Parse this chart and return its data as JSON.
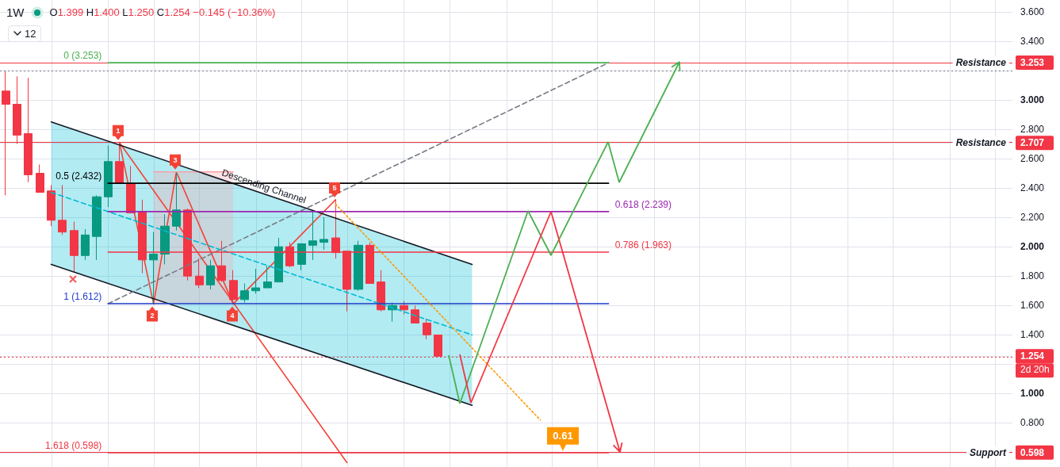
{
  "chart_data": {
    "type": "candlestick",
    "title": "1W",
    "subtitle": "O1.399 H1.400 L1.250 C1.254 −0.145 (−10.36%)",
    "categories": [
      null,
      null,
      null,
      null,
      null,
      null,
      null,
      null,
      null,
      null,
      null,
      null,
      null,
      null,
      null,
      null,
      null,
      null,
      null,
      null,
      null,
      null,
      null,
      null,
      null,
      null,
      null,
      null,
      null,
      null,
      null,
      null,
      null,
      null,
      null,
      null,
      null,
      null,
      null,
      null,
      null,
      null,
      null,
      null,
      null,
      null,
      null,
      null,
      null,
      null,
      null,
      null,
      null,
      null,
      null,
      null,
      null,
      null,
      null,
      null,
      null,
      null,
      null,
      null,
      null,
      null,
      null,
      null,
      null,
      null,
      null,
      null,
      null,
      null,
      null,
      null,
      null,
      null,
      null,
      null,
      null,
      null,
      null,
      null,
      null,
      null,
      null,
      null,
      null
    ],
    "ohlc": [
      [
        3.06,
        3.2,
        2.35,
        2.97
      ],
      [
        2.97,
        3.16,
        2.7,
        2.76
      ],
      [
        2.77,
        3.15,
        2.44,
        2.49
      ],
      [
        2.5,
        2.56,
        2.37,
        2.37
      ],
      [
        2.38,
        2.42,
        2.14,
        2.18
      ],
      [
        2.18,
        2.42,
        2.08,
        2.1
      ],
      [
        2.11,
        2.17,
        1.83,
        1.94
      ],
      [
        1.94,
        2.12,
        1.91,
        2.08
      ],
      [
        2.07,
        2.35,
        1.91,
        2.34
      ],
      [
        2.34,
        2.69,
        2.27,
        2.58
      ],
      [
        2.58,
        2.71,
        2.43,
        2.43
      ],
      [
        2.43,
        2.55,
        2.23,
        2.23
      ],
      [
        2.24,
        2.32,
        1.82,
        1.91
      ],
      [
        1.91,
        2.1,
        1.61,
        1.95
      ],
      [
        1.95,
        2.22,
        1.88,
        2.14
      ],
      [
        2.14,
        2.51,
        2.11,
        2.25
      ],
      [
        2.25,
        2.26,
        1.77,
        1.8
      ],
      [
        1.8,
        1.92,
        1.72,
        1.74
      ],
      [
        1.74,
        1.91,
        1.71,
        1.87
      ],
      [
        1.87,
        2.04,
        1.76,
        1.77
      ],
      [
        1.77,
        1.84,
        1.61,
        1.64
      ],
      [
        1.64,
        1.75,
        1.62,
        1.7
      ],
      [
        1.7,
        1.85,
        1.68,
        1.72
      ],
      [
        1.72,
        1.87,
        1.72,
        1.76
      ],
      [
        1.76,
        2.06,
        1.76,
        2.0
      ],
      [
        2.0,
        2.03,
        1.86,
        1.87
      ],
      [
        1.88,
        2.02,
        1.84,
        2.02
      ],
      [
        2.01,
        2.24,
        1.91,
        2.04
      ],
      [
        2.03,
        2.2,
        1.98,
        2.05
      ],
      [
        2.06,
        2.32,
        1.92,
        1.96
      ],
      [
        1.97,
        1.97,
        1.56,
        1.71
      ],
      [
        1.71,
        2.04,
        1.7,
        2.01
      ],
      [
        2.01,
        2.03,
        1.75,
        1.75
      ],
      [
        1.76,
        1.84,
        1.56,
        1.57
      ],
      [
        1.57,
        1.62,
        1.49,
        1.6
      ],
      [
        1.6,
        1.63,
        1.54,
        1.57
      ],
      [
        1.57,
        1.6,
        1.48,
        1.48
      ],
      [
        1.48,
        1.51,
        1.37,
        1.4
      ],
      [
        1.399,
        1.4,
        1.25,
        1.254
      ],
      null,
      null,
      null,
      null,
      null,
      null,
      null,
      null,
      null,
      null,
      null,
      null,
      null,
      null,
      null,
      null,
      null,
      null,
      null,
      null,
      null,
      null,
      null,
      null,
      null,
      null,
      null,
      null,
      null,
      null,
      null,
      null,
      null,
      null,
      null,
      null,
      null,
      null,
      null,
      null,
      null,
      null,
      null,
      null,
      null,
      null,
      null,
      null,
      null,
      null
    ],
    "colors": [
      "#f23645",
      "#f23645",
      "#f23645",
      "#f23645",
      "#f23645",
      "#f23645",
      "#f23645",
      "#089981",
      "#089981",
      "#089981",
      "#f23645",
      "#f23645",
      "#f23645",
      "#089981",
      "#089981",
      "#089981",
      "#f23645",
      "#f23645",
      "#089981",
      "#f23645",
      "#f23645",
      "#089981",
      "#089981",
      "#089981",
      "#089981",
      "#f23645",
      "#089981",
      "#089981",
      "#089981",
      "#f23645",
      "#f23645",
      "#089981",
      "#f23645",
      "#f23645",
      "#089981",
      "#f23645",
      "#f23645",
      "#f23645",
      "#f23645",
      null,
      null,
      null,
      null,
      null,
      null,
      null,
      null,
      null,
      null,
      null,
      null,
      null,
      null,
      null,
      null,
      null,
      null,
      null,
      null,
      null,
      null,
      null,
      null,
      null,
      null,
      null,
      null,
      null,
      null,
      null,
      null,
      null,
      null,
      null,
      null,
      null,
      null,
      null,
      null,
      null,
      null,
      null,
      null,
      null,
      null,
      null,
      null,
      null,
      null
    ],
    "series": [
      {
        "type": "line",
        "color": "#00bcd4",
        "line_style": "dashed",
        "values": [
          null,
          null,
          null,
          null,
          2.37,
          null,
          null,
          null,
          null,
          null,
          null,
          null,
          null,
          null,
          null,
          null,
          null,
          null,
          null,
          null,
          null,
          null,
          null,
          null,
          null,
          null,
          null,
          null,
          null,
          null,
          null,
          null,
          null,
          null,
          null,
          null,
          null,
          null,
          null,
          null,
          null,
          1.4,
          null,
          null,
          null,
          null,
          null,
          null,
          null,
          null,
          null,
          null,
          null,
          null,
          null,
          null,
          null,
          null,
          null,
          null,
          null,
          null,
          null,
          null,
          null,
          null,
          null,
          null,
          null,
          null,
          null,
          null,
          null,
          null,
          null,
          null,
          null,
          null,
          null,
          null,
          null,
          null,
          null,
          null,
          null,
          null,
          null,
          null,
          null
        ],
        "lower": [
          null,
          null,
          null,
          null,
          1.88,
          null,
          null,
          null,
          null,
          null,
          null,
          null,
          null,
          null,
          null,
          null,
          null,
          null,
          null,
          null,
          null,
          null,
          null,
          null,
          null,
          null,
          null,
          null,
          null,
          null,
          null,
          null,
          null,
          null,
          null,
          null,
          null,
          null,
          null,
          null,
          null,
          0.92,
          null,
          null,
          null,
          null,
          null,
          null,
          null,
          null,
          null,
          null,
          null,
          null,
          null,
          null,
          null,
          null,
          null,
          null,
          null,
          null,
          null,
          null,
          null,
          null,
          null,
          null,
          null,
          null,
          null,
          null,
          null,
          null,
          null,
          null,
          null,
          null,
          null,
          null,
          null,
          null,
          null,
          null,
          null,
          null,
          null,
          null,
          null
        ],
        "upper": [
          null,
          null,
          null,
          null,
          2.85,
          null,
          null,
          null,
          null,
          null,
          null,
          null,
          null,
          null,
          null,
          null,
          null,
          null,
          null,
          null,
          null,
          null,
          null,
          null,
          null,
          null,
          null,
          null,
          null,
          null,
          null,
          null,
          null,
          null,
          null,
          null,
          null,
          null,
          null,
          null,
          null,
          1.88,
          null,
          null,
          null,
          null,
          null,
          null,
          null,
          null,
          null,
          null,
          null,
          null,
          null,
          null,
          null,
          null,
          null,
          null,
          null,
          null,
          null,
          null,
          null,
          null,
          null,
          null,
          null,
          null,
          null,
          null,
          null,
          null,
          null,
          null,
          null,
          null,
          null,
          null,
          null,
          null,
          null,
          null,
          null,
          null,
          null,
          null,
          null
        ]
      },
      {
        "type": "line",
        "color": "#f7a1a8",
        "values": [
          null,
          null,
          null,
          null,
          null,
          null,
          null,
          null,
          null,
          null,
          null,
          null,
          null,
          2.51,
          null,
          null,
          null,
          null,
          null,
          null,
          2.51,
          null,
          null,
          null,
          null,
          null,
          null,
          null,
          null,
          null,
          null,
          null,
          null,
          null,
          null,
          null,
          null,
          null,
          null,
          null,
          null,
          null,
          null,
          null,
          null,
          null,
          null,
          null,
          null,
          null,
          null,
          null,
          null,
          null,
          null,
          null,
          null,
          null,
          null,
          null,
          null,
          null,
          null,
          null,
          null,
          null,
          null,
          null,
          null,
          null,
          null,
          null,
          null,
          null,
          null,
          null,
          null,
          null,
          null,
          null,
          null,
          null,
          null,
          null,
          null,
          null,
          null,
          null,
          null
        ],
        "lower": [
          null,
          null,
          null,
          null,
          null,
          null,
          null,
          null,
          null,
          null,
          null,
          null,
          null,
          1.61,
          null,
          null,
          null,
          null,
          null,
          null,
          1.61,
          null,
          null,
          null,
          null,
          null,
          null,
          null,
          null,
          null,
          null,
          null,
          null,
          null,
          null,
          null,
          null,
          null,
          null,
          null,
          null,
          null,
          null,
          null,
          null,
          null,
          null,
          null,
          null,
          null,
          null,
          null,
          null,
          null,
          null,
          null,
          null,
          null,
          null,
          null,
          null,
          null,
          null,
          null,
          null,
          null,
          null,
          null,
          null,
          null,
          null,
          null,
          null,
          null,
          null,
          null,
          null,
          null,
          null,
          null,
          null,
          null,
          null,
          null,
          null,
          null,
          null,
          null,
          null
        ],
        "upper": [
          null,
          null,
          null,
          null,
          null,
          null,
          null,
          null,
          null,
          null,
          null,
          null,
          null,
          2.51,
          null,
          null,
          null,
          null,
          null,
          null,
          2.51,
          null,
          null,
          null,
          null,
          null,
          null,
          null,
          null,
          null,
          null,
          null,
          null,
          null,
          null,
          null,
          null,
          null,
          null,
          null,
          null,
          null,
          null,
          null,
          null,
          null,
          null,
          null,
          null,
          null,
          null,
          null,
          null,
          null,
          null,
          null,
          null,
          null,
          null,
          null,
          null,
          null,
          null,
          null,
          null,
          null,
          null,
          null,
          null,
          null,
          null,
          null,
          null,
          null,
          null,
          null,
          null,
          null,
          null,
          null,
          null,
          null,
          null,
          null,
          null,
          null,
          null,
          null,
          null
        ]
      },
      {
        "type": "line",
        "color": "#131722",
        "values": [
          null,
          null,
          null,
          null,
          2.85,
          null,
          null,
          null,
          null,
          null,
          null,
          null,
          null,
          null,
          null,
          null,
          null,
          null,
          null,
          null,
          null,
          null,
          null,
          null,
          null,
          null,
          null,
          null,
          null,
          null,
          null,
          null,
          null,
          null,
          null,
          null,
          null,
          null,
          null,
          null,
          null,
          1.88,
          null,
          null,
          null,
          null,
          null,
          null,
          null,
          null,
          null,
          null,
          null,
          null,
          null,
          null,
          null,
          null,
          null,
          null,
          null,
          null,
          null,
          null,
          null,
          null,
          null,
          null,
          null,
          null,
          null,
          null,
          null,
          null,
          null,
          null,
          null,
          null,
          null,
          null,
          null,
          null,
          null,
          null,
          null,
          null,
          null,
          null,
          null
        ]
      },
      {
        "type": "line",
        "color": "#131722",
        "values": [
          null,
          null,
          null,
          null,
          1.88,
          null,
          null,
          null,
          null,
          null,
          null,
          null,
          null,
          null,
          null,
          null,
          null,
          null,
          null,
          null,
          null,
          null,
          null,
          null,
          null,
          null,
          null,
          null,
          null,
          null,
          null,
          null,
          null,
          null,
          null,
          null,
          null,
          null,
          null,
          null,
          null,
          0.92,
          null,
          null,
          null,
          null,
          null,
          null,
          null,
          null,
          null,
          null,
          null,
          null,
          null,
          null,
          null,
          null,
          null,
          null,
          null,
          null,
          null,
          null,
          null,
          null,
          null,
          null,
          null,
          null,
          null,
          null,
          null,
          null,
          null,
          null,
          null,
          null,
          null,
          null,
          null,
          null,
          null,
          null,
          null,
          null,
          null,
          null,
          null
        ]
      },
      {
        "type": "line",
        "color": "#787b86",
        "line_style": "dashed",
        "values": [
          null,
          null,
          null,
          null,
          null,
          null,
          null,
          null,
          null,
          1.612,
          null,
          null,
          null,
          null,
          null,
          null,
          null,
          null,
          null,
          null,
          null,
          null,
          null,
          null,
          null,
          null,
          null,
          null,
          null,
          null,
          null,
          null,
          null,
          null,
          null,
          null,
          null,
          null,
          null,
          null,
          null,
          null,
          null,
          null,
          null,
          null,
          null,
          null,
          null,
          null,
          null,
          null,
          null,
          3.253,
          null,
          null,
          null,
          null,
          null,
          null,
          null,
          null,
          null,
          null,
          null,
          null,
          null,
          null,
          null,
          null,
          null,
          null,
          null,
          null,
          null,
          null,
          null,
          null,
          null,
          null,
          null,
          null,
          null,
          null,
          null,
          null,
          null,
          null,
          null
        ]
      },
      {
        "type": "line",
        "name": "0 (3.253)",
        "color": "#4caf50",
        "values": [
          null,
          null,
          null,
          null,
          null,
          null,
          null,
          null,
          null,
          3.253,
          null,
          null,
          null,
          null,
          null,
          null,
          null,
          null,
          null,
          null,
          null,
          null,
          null,
          null,
          null,
          null,
          null,
          null,
          null,
          null,
          null,
          null,
          null,
          null,
          null,
          null,
          null,
          null,
          null,
          null,
          null,
          null,
          null,
          null,
          null,
          null,
          null,
          null,
          null,
          null,
          null,
          null,
          null,
          3.253,
          null,
          null,
          null,
          null,
          null,
          null,
          null,
          null,
          null,
          null,
          null,
          null,
          null,
          null,
          null,
          null,
          null,
          null,
          null,
          null,
          null,
          null,
          null,
          null,
          null,
          null,
          null,
          null,
          null,
          null,
          null,
          null,
          null,
          null,
          null
        ]
      },
      {
        "type": "line",
        "name": "0.5 (2.432)",
        "color": "#000000",
        "values": [
          null,
          null,
          null,
          null,
          null,
          null,
          null,
          null,
          null,
          2.432,
          null,
          null,
          null,
          null,
          null,
          null,
          null,
          null,
          null,
          null,
          null,
          null,
          null,
          null,
          null,
          null,
          null,
          null,
          null,
          null,
          null,
          null,
          null,
          null,
          null,
          null,
          null,
          null,
          null,
          null,
          null,
          null,
          null,
          null,
          null,
          null,
          null,
          null,
          null,
          null,
          null,
          null,
          null,
          2.432,
          null,
          null,
          null,
          null,
          null,
          null,
          null,
          null,
          null,
          null,
          null,
          null,
          null,
          null,
          null,
          null,
          null,
          null,
          null,
          null,
          null,
          null,
          null,
          null,
          null,
          null,
          null,
          null,
          null,
          null,
          null,
          null,
          null,
          null,
          null
        ]
      },
      {
        "type": "line",
        "name": "0.618 (2.239)",
        "color": "#9c27b0",
        "values": [
          null,
          null,
          null,
          null,
          null,
          null,
          null,
          null,
          null,
          2.239,
          null,
          null,
          null,
          null,
          null,
          null,
          null,
          null,
          null,
          null,
          null,
          null,
          null,
          null,
          null,
          null,
          null,
          null,
          null,
          null,
          null,
          null,
          null,
          null,
          null,
          null,
          null,
          null,
          null,
          null,
          null,
          null,
          null,
          null,
          null,
          null,
          null,
          null,
          null,
          null,
          null,
          null,
          null,
          2.239,
          null,
          null,
          null,
          null,
          null,
          null,
          null,
          null,
          null,
          null,
          null,
          null,
          null,
          null,
          null,
          null,
          null,
          null,
          null,
          null,
          null,
          null,
          null,
          null,
          null,
          null,
          null,
          null,
          null,
          null,
          null,
          null,
          null,
          null,
          null
        ]
      },
      {
        "type": "line",
        "name": "0.786 (1.963)",
        "color": "#f23645",
        "values": [
          null,
          null,
          null,
          null,
          null,
          null,
          null,
          null,
          null,
          1.963,
          null,
          null,
          null,
          null,
          null,
          null,
          null,
          null,
          null,
          null,
          null,
          null,
          null,
          null,
          null,
          null,
          null,
          null,
          null,
          null,
          null,
          null,
          null,
          null,
          null,
          null,
          null,
          null,
          null,
          null,
          null,
          null,
          null,
          null,
          null,
          null,
          null,
          null,
          null,
          null,
          null,
          null,
          null,
          1.963,
          null,
          null,
          null,
          null,
          null,
          null,
          null,
          null,
          null,
          null,
          null,
          null,
          null,
          null,
          null,
          null,
          null,
          null,
          null,
          null,
          null,
          null,
          null,
          null,
          null,
          null,
          null,
          null,
          null,
          null,
          null,
          null,
          null,
          null,
          null
        ]
      },
      {
        "type": "line",
        "name": "1 (1.612)",
        "color": "#1e3cc8",
        "values": [
          null,
          null,
          null,
          null,
          null,
          null,
          null,
          null,
          null,
          1.612,
          null,
          null,
          null,
          null,
          null,
          null,
          null,
          null,
          null,
          null,
          null,
          null,
          null,
          null,
          null,
          null,
          null,
          null,
          null,
          null,
          null,
          null,
          null,
          null,
          null,
          null,
          null,
          null,
          null,
          null,
          null,
          null,
          null,
          null,
          null,
          null,
          null,
          null,
          null,
          null,
          null,
          null,
          null,
          1.612,
          null,
          null,
          null,
          null,
          null,
          null,
          null,
          null,
          null,
          null,
          null,
          null,
          null,
          null,
          null,
          null,
          null,
          null,
          null,
          null,
          null,
          null,
          null,
          null,
          null,
          null,
          null,
          null,
          null,
          null,
          null,
          null,
          null,
          null,
          null
        ]
      },
      {
        "type": "line",
        "name": "1.618 (0.598)",
        "color": "#f23645",
        "values": [
          null,
          null,
          null,
          null,
          null,
          null,
          null,
          null,
          null,
          0.598,
          null,
          null,
          null,
          null,
          null,
          null,
          null,
          null,
          null,
          null,
          null,
          null,
          null,
          null,
          null,
          null,
          null,
          null,
          null,
          null,
          null,
          null,
          null,
          null,
          null,
          null,
          null,
          null,
          null,
          null,
          null,
          null,
          null,
          null,
          null,
          null,
          null,
          null,
          null,
          null,
          null,
          null,
          null,
          0.598,
          null,
          null,
          null,
          null,
          null,
          null,
          null,
          null,
          null,
          null,
          null,
          null,
          null,
          null,
          null,
          null,
          null,
          null,
          null,
          null,
          null,
          null,
          null,
          null,
          null,
          null,
          null,
          null,
          null,
          null,
          null,
          null,
          null,
          null,
          null
        ]
      },
      {
        "type": "line",
        "color": "#f44336",
        "values": [
          null,
          null,
          null,
          null,
          null,
          null,
          null,
          null,
          null,
          null,
          2.71,
          null,
          null,
          1.61,
          null,
          2.51,
          null,
          null,
          null,
          null,
          1.61,
          null,
          null,
          null,
          null,
          null,
          null,
          null,
          null,
          2.32,
          null,
          null,
          null,
          null,
          null,
          null,
          null,
          null,
          null,
          null,
          null,
          null,
          null,
          null,
          null,
          null,
          null,
          null,
          null,
          null,
          null,
          null,
          null,
          null,
          null,
          null,
          null,
          null,
          null,
          null,
          null,
          null,
          null,
          null,
          null,
          null,
          null,
          null,
          null,
          null,
          null,
          null,
          null,
          null,
          null,
          null,
          null,
          null,
          null,
          null,
          null,
          null,
          null,
          null,
          null,
          null,
          null,
          null,
          null
        ]
      },
      {
        "type": "line",
        "color": "#f44336",
        "values": [
          null,
          null,
          null,
          null,
          null,
          null,
          null,
          null,
          null,
          null,
          2.71,
          null,
          null,
          null,
          null,
          null,
          null,
          null,
          null,
          null,
          null,
          null,
          null,
          null,
          null,
          null,
          null,
          null,
          null,
          null,
          0.53,
          null,
          null,
          null,
          null,
          null,
          null,
          null,
          null,
          null,
          null,
          null,
          null,
          null,
          null,
          null,
          null,
          null,
          null,
          null,
          null,
          null,
          null,
          null,
          null,
          null,
          null,
          null,
          null,
          null,
          null,
          null,
          null,
          null,
          null,
          null,
          null,
          null,
          null,
          null,
          null,
          null,
          null,
          null,
          null,
          null,
          null,
          null,
          null,
          null,
          null,
          null,
          null,
          null,
          null,
          null,
          null,
          null,
          null
        ]
      },
      {
        "type": "line",
        "color": "#ff9800",
        "line_style": "dotted",
        "values": [
          null,
          null,
          null,
          null,
          null,
          null,
          null,
          null,
          null,
          null,
          null,
          null,
          null,
          null,
          null,
          null,
          null,
          null,
          null,
          null,
          null,
          null,
          null,
          null,
          null,
          null,
          null,
          null,
          null,
          2.29,
          null,
          null,
          null,
          null,
          null,
          null,
          null,
          null,
          null,
          null,
          null,
          null,
          null,
          null,
          null,
          null,
          null,
          0.82,
          null,
          null,
          null,
          null,
          null,
          null,
          null,
          null,
          null,
          null,
          null,
          null,
          null,
          null,
          null,
          null,
          null,
          null,
          null,
          null,
          null,
          null,
          null,
          null,
          null,
          null,
          null,
          null,
          null,
          null,
          null,
          null,
          null,
          null,
          null,
          null,
          null,
          null,
          null,
          null,
          null
        ]
      }
    ],
    "ylim": [
      0.5,
      3.68
    ],
    "yticks": [
      0.598,
      {
        "value": 0.6,
        "label": null
      },
      {
        "value": 0.8,
        "label": "0.800"
      },
      {
        "value": 1,
        "label": "1.000"
      },
      {
        "value": 1.2,
        "label": null
      },
      1.254,
      {
        "value": 1.4,
        "label": "1.400"
      },
      {
        "value": 1.6,
        "label": "1.600"
      },
      {
        "value": 1.8,
        "label": "1.800"
      },
      {
        "value": 2,
        "label": "2.000"
      },
      {
        "value": 2.2,
        "label": "2.200"
      },
      {
        "value": 2.4,
        "label": "2.400"
      },
      {
        "value": 2.6,
        "label": "2.600"
      },
      2.707,
      {
        "value": 2.8,
        "label": "2.800"
      },
      {
        "value": 3,
        "label": "3.000"
      },
      {
        "value": 3.2,
        "label": null
      },
      3.253,
      {
        "value": 3.4,
        "label": "3.400"
      },
      {
        "value": 3.6,
        "label": "3.600"
      }
    ],
    "grid": true,
    "tick_labels": "y",
    "ref_lines": [
      {
        "axis": "y",
        "value": 3.253,
        "label": "Resistance",
        "color": "#f23645"
      },
      {
        "axis": "y",
        "value": 2.707,
        "label": "Resistance",
        "color": "#f23645"
      },
      {
        "axis": "y",
        "value": 0.598,
        "label": "Support",
        "color": "#f23645"
      },
      {
        "axis": "y",
        "value": 1.254,
        "label": "2d 20h",
        "color": "#f23645",
        "line_style": "dotted"
      },
      {
        "axis": "y",
        "value": 3.2,
        "color": "#787b86",
        "line_style": "dotted"
      }
    ],
    "annotations": [
      "12",
      {
        "text": "0.61",
        "y": 0.61
      },
      {
        "text": "1",
        "y": 2.71
      },
      {
        "text": "2",
        "y": 1.61
      },
      {
        "text": "3",
        "y": 2.51
      },
      {
        "text": "4",
        "y": 1.61
      },
      {
        "text": "5",
        "y": 2.32
      },
      "Descending Channel"
    ]
  }
}
